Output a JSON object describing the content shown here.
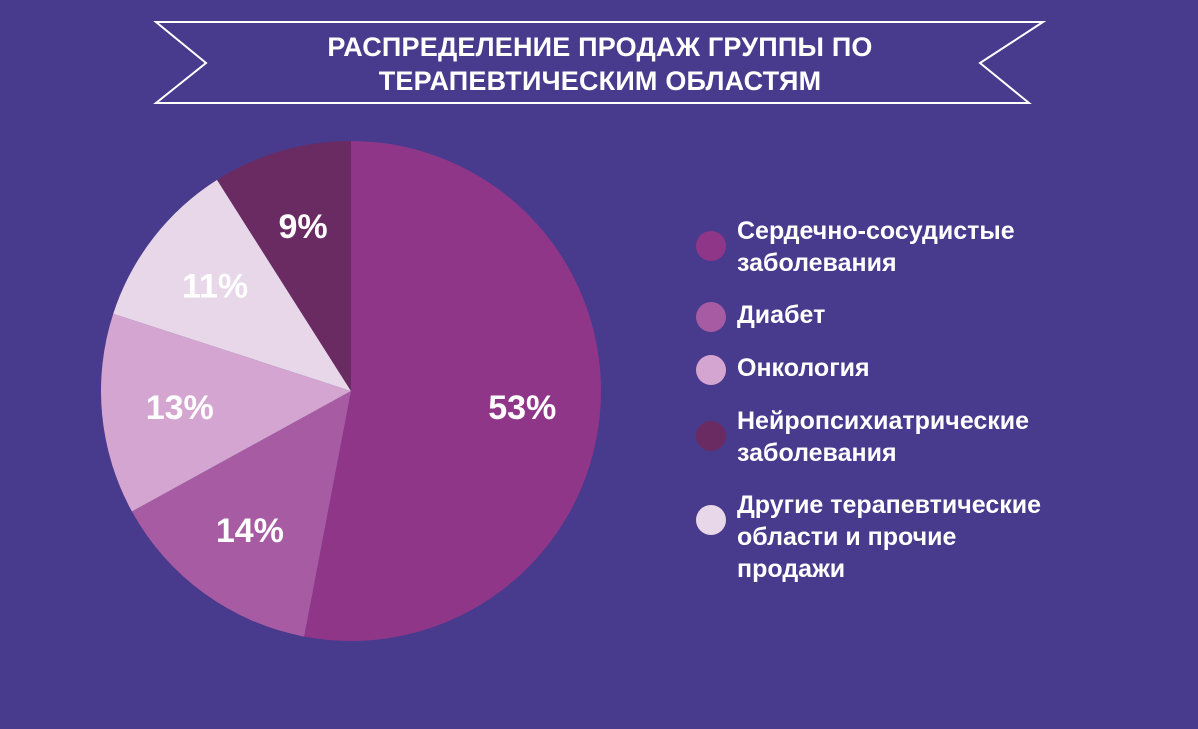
{
  "title": {
    "line1": "РАСПРЕДЕЛЕНИЕ ПРОДАЖ ГРУППЫ ПО",
    "line2": "ТЕРАПЕВТИЧЕСКИМ ОБЛАСТЯМ"
  },
  "colors": {
    "background": "#483a8c",
    "ribbon": "#ffffff",
    "label_text": "#ffffff"
  },
  "chart_data": {
    "type": "pie",
    "title": "РАСПРЕДЕЛЕНИЕ ПРОДАЖ ГРУППЫ ПО ТЕРАПЕВТИЧЕСКИМ ОБЛАСТЯМ",
    "start": "12 o'clock",
    "direction": "clockwise",
    "legend_position": "right",
    "slices": [
      {
        "value": 53,
        "label": "53%",
        "color": "#8f3689"
      },
      {
        "value": 14,
        "label": "14%",
        "color": "#a65ba2"
      },
      {
        "value": 13,
        "label": "13%",
        "color": "#d4a5d0"
      },
      {
        "value": 11,
        "label": "11%",
        "color": "#e8d7e9"
      },
      {
        "value": 9,
        "label": "9%",
        "color": "#6a2b62"
      }
    ],
    "legend": [
      {
        "lines": [
          "Сердечно-сосудистые",
          "заболевания"
        ],
        "color": "#8f3689"
      },
      {
        "lines": [
          "Диабет"
        ],
        "color": "#a65ba2"
      },
      {
        "lines": [
          "Онкология"
        ],
        "color": "#d4a5d0"
      },
      {
        "lines": [
          "Нейропсихиатрические",
          "заболевания"
        ],
        "color": "#6a2b62"
      },
      {
        "lines": [
          "Другие терапевтические",
          "области и прочие",
          "продажи"
        ],
        "color": "#e8d7e9"
      }
    ]
  }
}
